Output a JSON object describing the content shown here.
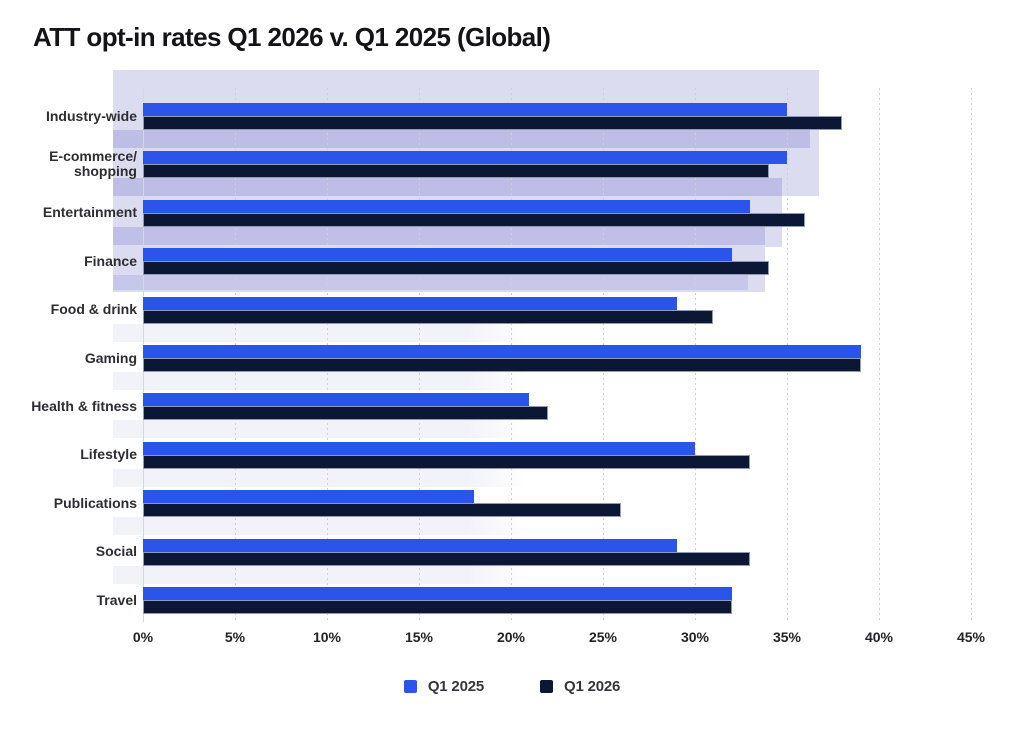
{
  "title": "ATT opt-in rates Q1 2026 v. Q1 2025 (Global)",
  "chart_data": {
    "type": "bar",
    "orientation": "horizontal-grouped",
    "categories": [
      {
        "label": "Industry-wide",
        "lines": [
          "Industry-wide"
        ]
      },
      {
        "label": "E-commerce/shopping",
        "lines": [
          "E-commerce/",
          "shopping"
        ]
      },
      {
        "label": "Entertainment",
        "lines": [
          "Entertainment"
        ]
      },
      {
        "label": "Finance",
        "lines": [
          "Finance"
        ]
      },
      {
        "label": "Food & drink",
        "lines": [
          "Food & drink"
        ]
      },
      {
        "label": "Gaming",
        "lines": [
          "Gaming"
        ]
      },
      {
        "label": "Health & fitness",
        "lines": [
          "Health & fitness"
        ]
      },
      {
        "label": "Lifestyle",
        "lines": [
          "Lifestyle"
        ]
      },
      {
        "label": "Publications",
        "lines": [
          "Publications"
        ]
      },
      {
        "label": "Social",
        "lines": [
          "Social"
        ]
      },
      {
        "label": "Travel",
        "lines": [
          "Travel"
        ]
      }
    ],
    "series": [
      {
        "name": "Q1 2025",
        "color": "#2b54ea",
        "values": [
          35,
          35,
          33,
          32,
          29,
          39,
          21,
          30,
          18,
          29,
          32
        ]
      },
      {
        "name": "Q1 2026",
        "color": "#0b1734",
        "values": [
          38,
          34,
          36,
          34,
          31,
          39,
          22,
          33,
          26,
          33,
          32
        ]
      }
    ],
    "unit": "%",
    "x_ticks": [
      "0%",
      "5%",
      "10%",
      "15%",
      "20%",
      "25%",
      "30%",
      "35%",
      "40%",
      "45%"
    ],
    "x_tick_values": [
      0,
      5,
      10,
      15,
      20,
      25,
      30,
      35,
      40,
      45
    ],
    "xlim": [
      0,
      45
    ],
    "grid": "vertical-dotted",
    "legend_position": "bottom",
    "highlight": {
      "note": "translucent lavender highlight over top categories (Industry-wide through Finance)",
      "light_color": "#dcdcf0",
      "band_color": "#bdbde6",
      "row_stripe_color": "#f2f2f9"
    }
  }
}
